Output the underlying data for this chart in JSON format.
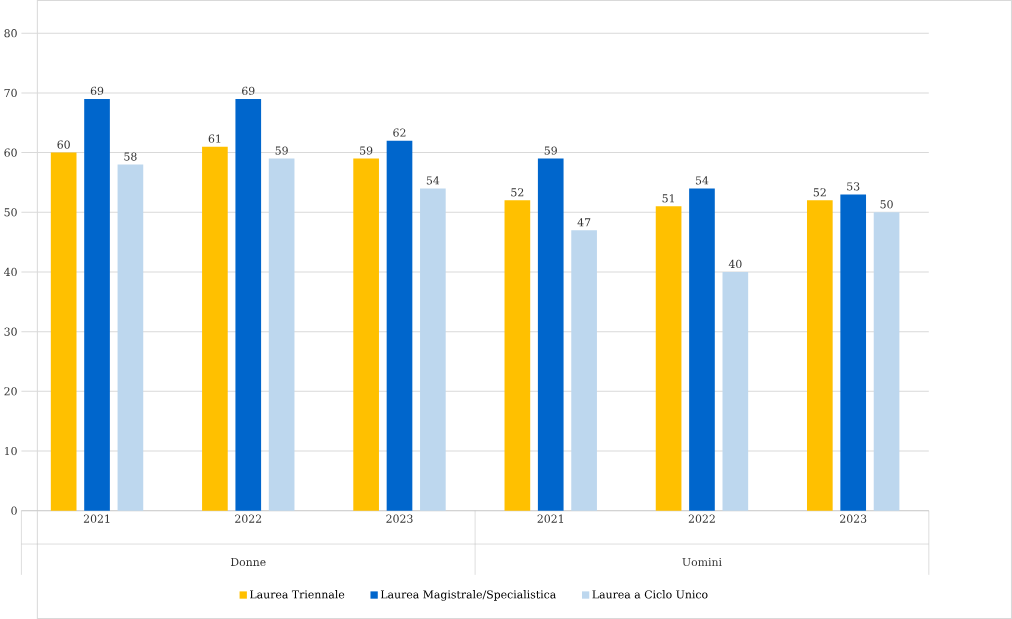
{
  "chart_data": {
    "type": "bar",
    "categories": [
      "2021",
      "2022",
      "2023",
      "2021",
      "2022",
      "2023"
    ],
    "series": [
      {
        "name": "Laurea Triennale",
        "color": "#ffc000",
        "values": [
          60,
          61,
          59,
          52,
          51,
          52
        ]
      },
      {
        "name": "Laurea Magistrale/Specialistica",
        "color": "#0066cc",
        "values": [
          69,
          69,
          62,
          59,
          54,
          53
        ]
      },
      {
        "name": "Laurea a Ciclo Unico",
        "color": "#bdd7ee",
        "values": [
          58,
          59,
          54,
          47,
          40,
          50
        ]
      }
    ],
    "annotations": [
      "Donne",
      "Uomini"
    ],
    "ylim": [
      0,
      80
    ],
    "yticks": [
      0,
      10,
      20,
      30,
      40,
      50,
      60,
      70,
      80
    ],
    "grid": "y",
    "legend": "bottom",
    "data_labels": true
  }
}
